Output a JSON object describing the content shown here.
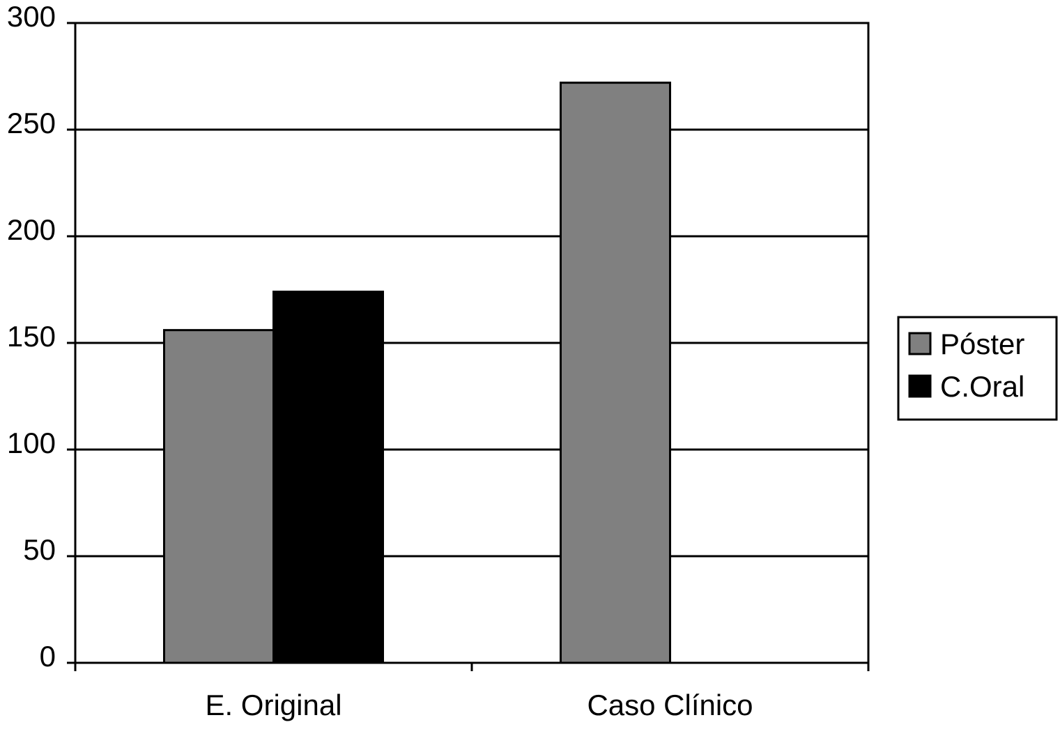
{
  "chart_data": {
    "type": "bar",
    "categories": [
      "E. Original",
      "Caso Clínico"
    ],
    "series": [
      {
        "name": "Póster",
        "color": "#808080",
        "values": [
          156,
          272
        ]
      },
      {
        "name": "C.Oral",
        "color": "#000000",
        "values": [
          174,
          null
        ]
      }
    ],
    "ylim": [
      0,
      300
    ],
    "yticks": [
      0,
      50,
      100,
      150,
      200,
      250,
      300
    ],
    "grid": true,
    "legend": "right"
  }
}
